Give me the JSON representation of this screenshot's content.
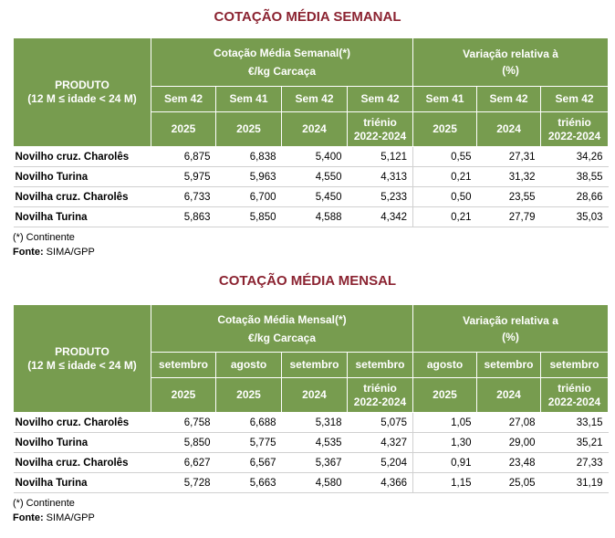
{
  "weekly": {
    "title": "COTAÇÃO MÉDIA SEMANAL",
    "produto_label": "PRODUTO",
    "produto_sub": "(12 M ≤ idade < 24 M)",
    "group1_line1": "Cotação Média Semanal(*)",
    "group1_line2": "€/kg Carcaça",
    "group2_line1": "Variação relativa  à",
    "group2_line2": "(%)",
    "periods": [
      "Sem 42",
      "Sem 41",
      "Sem 42",
      "Sem 42",
      "Sem 41",
      "Sem 42",
      "Sem 42"
    ],
    "years": [
      "2025",
      "2025",
      "2024",
      "triénio 2022-2024",
      "2025",
      "2024",
      "triénio 2022-2024"
    ],
    "rows": [
      {
        "product": "Novilho  cruz. Charolês",
        "values": [
          "6,875",
          "6,838",
          "5,400",
          "5,121",
          "0,55",
          "27,31",
          "34,26"
        ]
      },
      {
        "product": "Novilho Turina",
        "values": [
          "5,975",
          "5,963",
          "4,550",
          "4,313",
          "0,21",
          "31,32",
          "38,55"
        ]
      },
      {
        "product": "Novilha cruz. Charolês",
        "values": [
          "6,733",
          "6,700",
          "5,450",
          "5,233",
          "0,50",
          "23,55",
          "28,66"
        ]
      },
      {
        "product": "Novilha Turina",
        "values": [
          "5,863",
          "5,850",
          "4,588",
          "4,342",
          "0,21",
          "27,79",
          "35,03"
        ]
      }
    ],
    "note": "(*) Continente",
    "source_label": "Fonte:",
    "source": "SIMA/GPP"
  },
  "monthly": {
    "title": "COTAÇÃO MÉDIA MENSAL",
    "produto_label": "PRODUTO",
    "produto_sub": "(12 M ≤ idade < 24 M)",
    "group1_line1": "Cotação Média Mensal(*)",
    "group1_line2": "€/kg Carcaça",
    "group2_line1": "Variação relativa a",
    "group2_line2": "(%)",
    "periods": [
      "setembro",
      "agosto",
      "setembro",
      "setembro",
      "agosto",
      "setembro",
      "setembro"
    ],
    "years": [
      "2025",
      "2025",
      "2024",
      "triénio 2022-2024",
      "2025",
      "2024",
      "triénio 2022-2024"
    ],
    "rows": [
      {
        "product": "Novilho  cruz. Charolês",
        "values": [
          "6,758",
          "6,688",
          "5,318",
          "5,075",
          "1,05",
          "27,08",
          "33,15"
        ]
      },
      {
        "product": "Novilho Turina",
        "values": [
          "5,850",
          "5,775",
          "4,535",
          "4,327",
          "1,30",
          "29,00",
          "35,21"
        ]
      },
      {
        "product": "Novilha cruz. Charolês",
        "values": [
          "6,627",
          "6,567",
          "5,367",
          "5,204",
          "0,91",
          "23,48",
          "27,33"
        ]
      },
      {
        "product": "Novilha Turina",
        "values": [
          "5,728",
          "5,663",
          "4,580",
          "4,366",
          "1,15",
          "25,05",
          "31,19"
        ]
      }
    ],
    "note": "(*) Continente",
    "source_label": "Fonte:",
    "source": "SIMA/GPP"
  }
}
